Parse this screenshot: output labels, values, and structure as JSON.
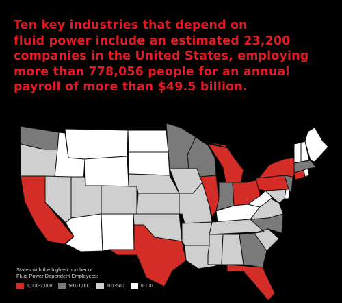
{
  "headline": {
    "lines": [
      "Ten key industries that depend on",
      "fluid power include an estimated 23,200",
      "companies in the United States, employing",
      "more than 778,056 people for an annual",
      "payroll of more than $49.5 billion."
    ]
  },
  "legend": {
    "title_lines": [
      "States with the highest number of",
      "Fluid Power Dependent Employees:"
    ],
    "items": [
      {
        "label": "1,000-2,000",
        "color": "#d42d27"
      },
      {
        "label": "501-1,000",
        "color": "#7a7a7a"
      },
      {
        "label": "101-500",
        "color": "#cfcfcf"
      },
      {
        "label": "0-100",
        "color": "#ffffff"
      }
    ]
  },
  "map": {
    "border_color": "#111111",
    "states": [
      {
        "name": "Washington",
        "category": "501-1,000"
      },
      {
        "name": "Oregon",
        "category": "101-500"
      },
      {
        "name": "California",
        "category": "1,000-2,000"
      },
      {
        "name": "Idaho",
        "category": "0-100"
      },
      {
        "name": "Nevada",
        "category": "101-500"
      },
      {
        "name": "Montana",
        "category": "0-100"
      },
      {
        "name": "Wyoming",
        "category": "0-100"
      },
      {
        "name": "Utah",
        "category": "101-500"
      },
      {
        "name": "Arizona",
        "category": "0-100"
      },
      {
        "name": "Colorado",
        "category": "101-500"
      },
      {
        "name": "New Mexico",
        "category": "0-100"
      },
      {
        "name": "North Dakota",
        "category": "0-100"
      },
      {
        "name": "South Dakota",
        "category": "0-100"
      },
      {
        "name": "Nebraska",
        "category": "101-500"
      },
      {
        "name": "Kansas",
        "category": "101-500"
      },
      {
        "name": "Oklahoma",
        "category": "101-500"
      },
      {
        "name": "Texas",
        "category": "1,000-2,000"
      },
      {
        "name": "Minnesota",
        "category": "501-1,000"
      },
      {
        "name": "Iowa",
        "category": "101-500"
      },
      {
        "name": "Missouri",
        "category": "101-500"
      },
      {
        "name": "Arkansas",
        "category": "101-500"
      },
      {
        "name": "Louisiana",
        "category": "101-500"
      },
      {
        "name": "Wisconsin",
        "category": "501-1,000"
      },
      {
        "name": "Illinois",
        "category": "1,000-2,000"
      },
      {
        "name": "Michigan",
        "category": "1,000-2,000"
      },
      {
        "name": "Indiana",
        "category": "501-1,000"
      },
      {
        "name": "Ohio",
        "category": "1,000-2,000"
      },
      {
        "name": "Kentucky",
        "category": "0-100"
      },
      {
        "name": "Tennessee",
        "category": "101-500"
      },
      {
        "name": "Mississippi",
        "category": "101-500"
      },
      {
        "name": "Alabama",
        "category": "101-500"
      },
      {
        "name": "Georgia",
        "category": "501-1,000"
      },
      {
        "name": "Florida",
        "category": "1,000-2,000"
      },
      {
        "name": "South Carolina",
        "category": "101-500"
      },
      {
        "name": "North Carolina",
        "category": "501-1,000"
      },
      {
        "name": "Virginia",
        "category": "101-500"
      },
      {
        "name": "West Virginia",
        "category": "0-100"
      },
      {
        "name": "Pennsylvania",
        "category": "1,000-2,000"
      },
      {
        "name": "Maryland",
        "category": "101-500"
      },
      {
        "name": "Delaware",
        "category": "0-100"
      },
      {
        "name": "New Jersey",
        "category": "501-1,000"
      },
      {
        "name": "New York",
        "category": "1,000-2,000"
      },
      {
        "name": "Connecticut",
        "category": "1,000-2,000"
      },
      {
        "name": "Rhode Island",
        "category": "0-100"
      },
      {
        "name": "Massachusetts",
        "category": "501-1,000"
      },
      {
        "name": "Vermont",
        "category": "0-100"
      },
      {
        "name": "New Hampshire",
        "category": "0-100"
      },
      {
        "name": "Maine",
        "category": "0-100"
      }
    ]
  }
}
